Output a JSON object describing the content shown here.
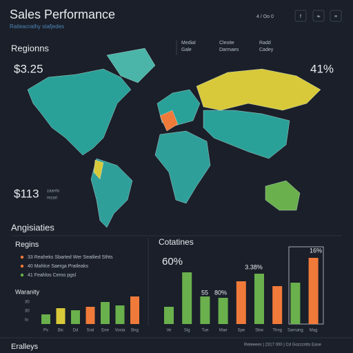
{
  "header": {
    "title": "Sales Performance",
    "subtitle": "Ratieacrathy stafjedes",
    "toolbar": [
      "4 / Oo 0",
      "f",
      "❧",
      "≡"
    ]
  },
  "map_panel": {
    "heading": "Regionns",
    "legend": [
      [
        "Medial",
        "Gale"
      ],
      [
        "Cleoite",
        "Darmaes"
      ],
      [
        "Radd",
        "Cadey"
      ]
    ],
    "stat_left_top": "$3.25",
    "stat_right_top": "41%",
    "stat_left_bottom": "$113",
    "stat_left_bottom_note": [
      "zaarrlo",
      "rezarl"
    ]
  },
  "section_heading": "Angisiaties",
  "left_panel": {
    "heading": "Regins",
    "legend": [
      {
        "text": "33 Reaheks  Sbarted Wer Seatlied Sthts",
        "color": "#f07a3a"
      },
      {
        "text": "40 Mahlce  Saerga Pratleaks",
        "color": "#f07a3a"
      },
      {
        "text": "41 Feahlos  Cemo pgsl",
        "color": "#6ab04c"
      }
    ],
    "chart_title": "Waranity",
    "axis_labels": [
      "30",
      "30",
      "Io"
    ],
    "bars": [
      {
        "label": "Ps",
        "value": 14,
        "color": "#6ab04c"
      },
      {
        "label": "Bic",
        "value": 23,
        "color": "#d8c93a"
      },
      {
        "label": "Dd",
        "value": 20,
        "color": "#6ab04c"
      },
      {
        "label": "Sral",
        "value": 25,
        "color": "#f07a3a"
      },
      {
        "label": "Ene",
        "value": 32,
        "color": "#6ab04c"
      },
      {
        "label": "Vosia",
        "value": 27,
        "color": "#6ab04c"
      },
      {
        "label": "Bng",
        "value": 40,
        "color": "#f07a3a"
      }
    ]
  },
  "right_panel": {
    "heading": "Cotatines",
    "big_stat": "60%",
    "annotations": [
      "55",
      "80%",
      "3.38%",
      "16%"
    ],
    "bars": [
      {
        "label": "Ve",
        "value": 25,
        "color": "#6ab04c"
      },
      {
        "label": "Sig",
        "value": 75,
        "color": "#6ab04c"
      },
      {
        "label": "Tue",
        "value": 40,
        "color": "#6ab04c"
      },
      {
        "label": "Mae",
        "value": 38,
        "color": "#6ab04c"
      },
      {
        "label": "Spe",
        "value": 62,
        "color": "#f07a3a"
      },
      {
        "label": "Sbw",
        "value": 73,
        "color": "#6ab04c"
      },
      {
        "label": "Thng",
        "value": 55,
        "color": "#f07a3a"
      },
      {
        "label": "Sarruing",
        "value": 60,
        "color": "#6ab04c"
      },
      {
        "label": "Mag",
        "value": 96,
        "color": "#f07a3a"
      }
    ]
  },
  "footer": {
    "left": "Eralleys",
    "right": "Reteeees | 2317 000 | Cd Gozccntts Ease"
  }
}
